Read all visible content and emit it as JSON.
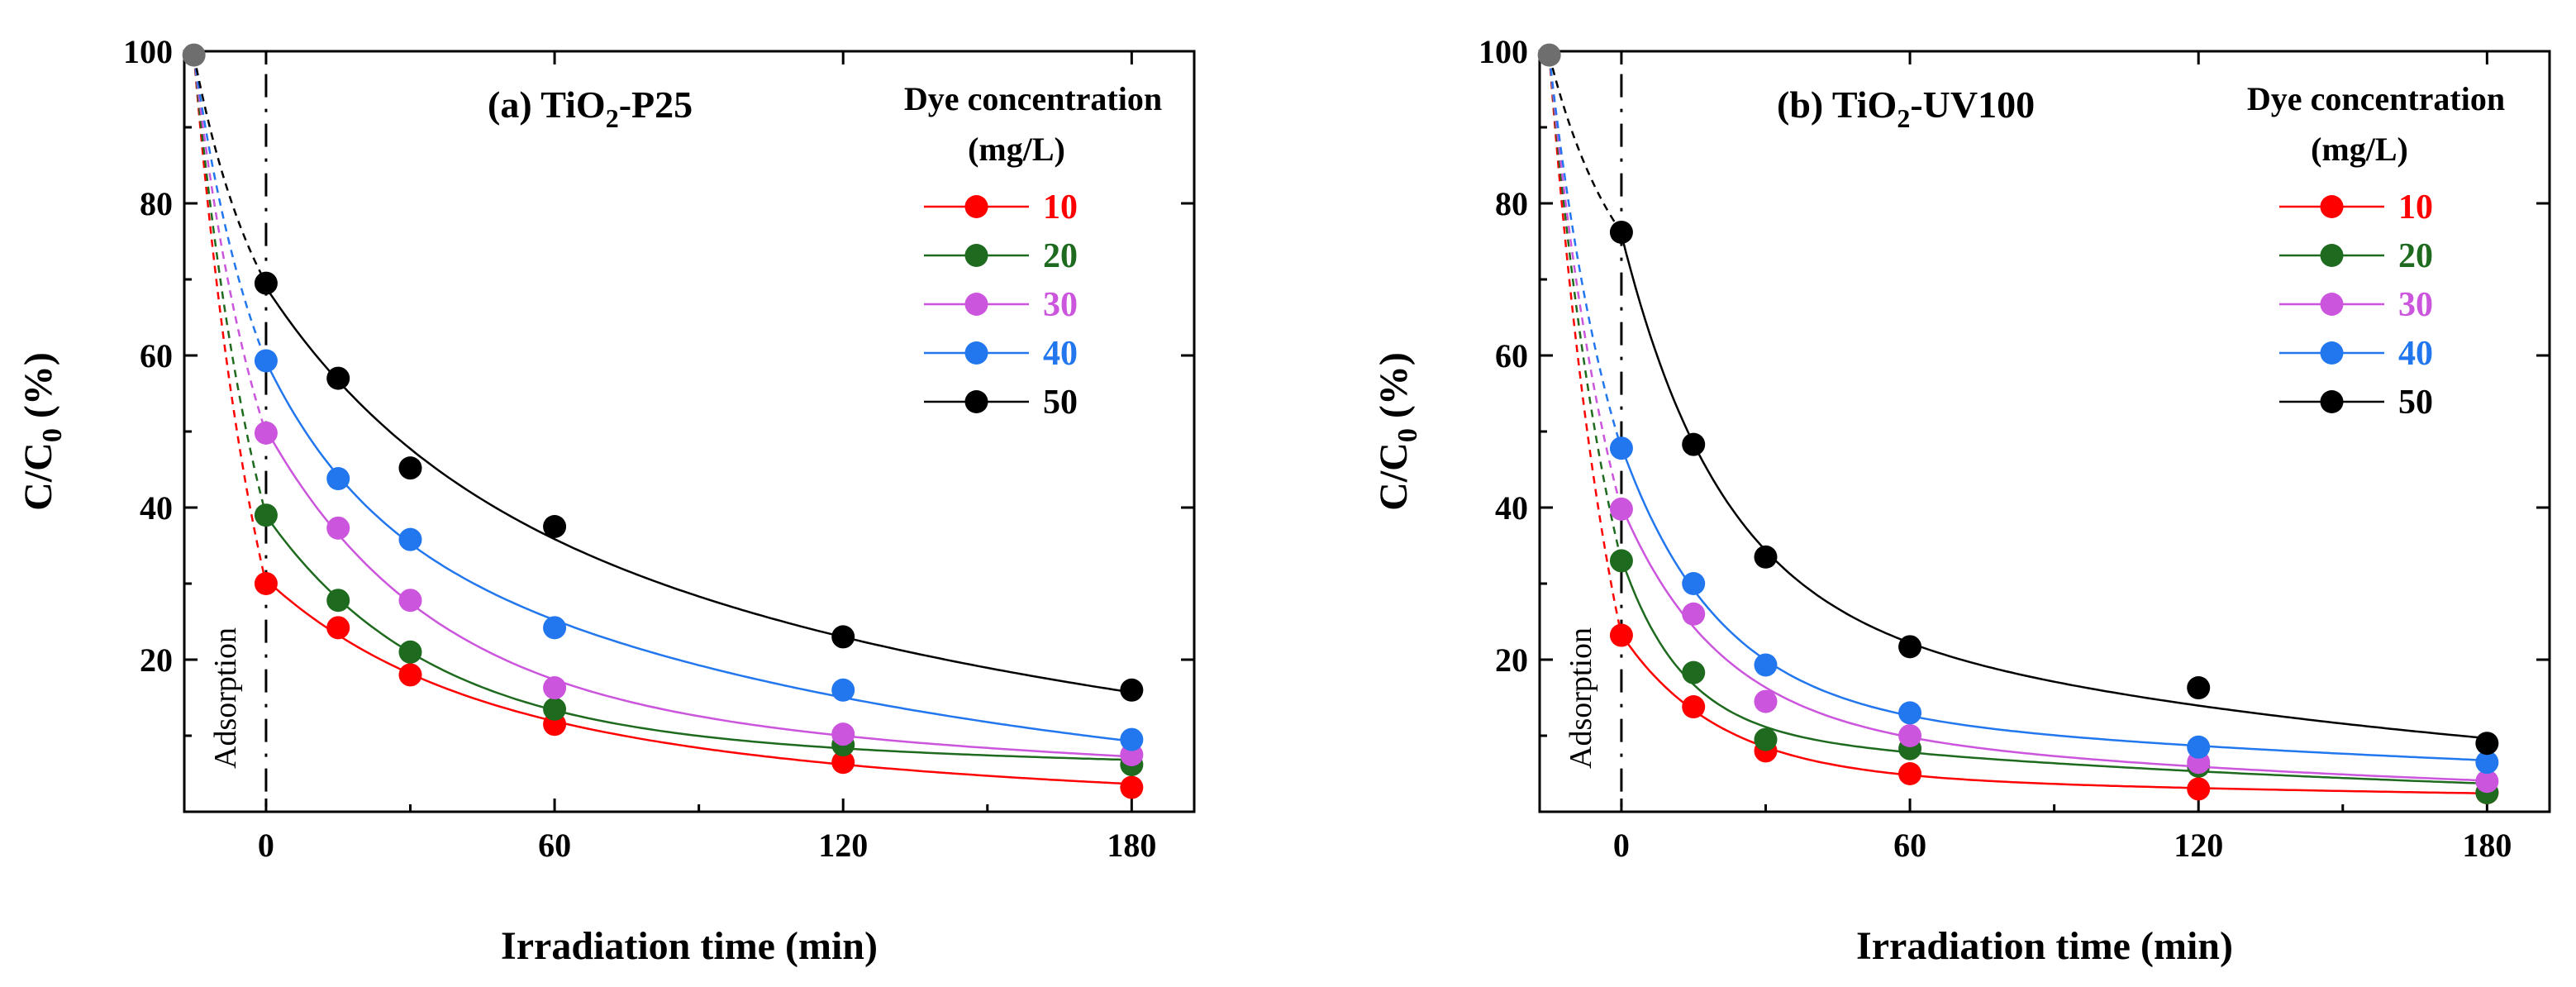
{
  "chart_data": [
    {
      "type": "scatter",
      "panel_id": "a",
      "title_prefix": "(a) TiO",
      "title_sub": "2",
      "title_suffix": "-P25",
      "xlabel": "Irradiation time (min)",
      "ylabel_main": "C/C",
      "ylabel_sub": "0",
      "ylabel_unit": " (%)",
      "xlim": [
        -17,
        193
      ],
      "ylim": [
        0,
        100
      ],
      "xticks": [
        0,
        60,
        120,
        180
      ],
      "xtick_labels": [
        "0",
        "60",
        "120",
        "180"
      ],
      "yticks": [
        20,
        40,
        60,
        80,
        100
      ],
      "ytick_labels": [
        "20",
        "40",
        "60",
        "80",
        "100"
      ],
      "annotation": "Adsorption",
      "adsorption_line_x": 0,
      "legend_title_line1": "Dye concentration",
      "legend_title_line2": "(mg/L)",
      "legend_position": "top-right",
      "start_point": {
        "x": -15,
        "y": 99.5,
        "color": "#6e6e6e"
      },
      "x": [
        0,
        15,
        30,
        60,
        120,
        180
      ],
      "series": [
        {
          "name": "10",
          "color": "#ff0000",
          "values": [
            30,
            24.2,
            18,
            11.5,
            6.5,
            3.2
          ]
        },
        {
          "name": "20",
          "color": "#1e6a1e",
          "values": [
            39,
            27.8,
            21,
            13.5,
            8.8,
            6.2
          ]
        },
        {
          "name": "30",
          "color": "#cc55dd",
          "values": [
            49.8,
            37.3,
            27.8,
            16.3,
            10.2,
            7.5
          ]
        },
        {
          "name": "40",
          "color": "#2277ee",
          "values": [
            59.3,
            43.8,
            35.8,
            24.2,
            16,
            9.5
          ]
        },
        {
          "name": "50",
          "color": "#000000",
          "values": [
            69.5,
            57,
            45.2,
            37.5,
            23,
            16
          ]
        }
      ]
    },
    {
      "type": "scatter",
      "panel_id": "b",
      "title_prefix": "(b) TiO",
      "title_sub": "2",
      "title_suffix": "-UV100",
      "xlabel": "Irradiation time (min)",
      "ylabel_main": "C/C",
      "ylabel_sub": "0",
      "ylabel_unit": " (%)",
      "xlim": [
        -17,
        193
      ],
      "ylim": [
        0,
        100
      ],
      "xticks": [
        0,
        60,
        120,
        180
      ],
      "xtick_labels": [
        "0",
        "60",
        "120",
        "180"
      ],
      "yticks": [
        20,
        40,
        60,
        80,
        100
      ],
      "ytick_labels": [
        "20",
        "40",
        "60",
        "80",
        "100"
      ],
      "annotation": "Adsorption",
      "adsorption_line_x": 0,
      "legend_title_line1": "Dye concentration",
      "legend_title_line2": "(mg/L)",
      "legend_position": "top-right",
      "start_point": {
        "x": -15,
        "y": 99.5,
        "color": "#6e6e6e"
      },
      "x": [
        0,
        15,
        30,
        60,
        120,
        180
      ],
      "series": [
        {
          "name": "10",
          "color": "#ff0000",
          "values": [
            23.2,
            13.8,
            8,
            5,
            3,
            2.5
          ]
        },
        {
          "name": "20",
          "color": "#1e6a1e",
          "values": [
            33,
            18.3,
            9.5,
            8.3,
            6,
            2.5
          ]
        },
        {
          "name": "30",
          "color": "#cc55dd",
          "values": [
            39.8,
            26,
            14.5,
            10,
            6.5,
            4
          ]
        },
        {
          "name": "40",
          "color": "#2277ee",
          "values": [
            47.8,
            30,
            19.3,
            13,
            8.5,
            6.5
          ]
        },
        {
          "name": "50",
          "color": "#000000",
          "values": [
            76.2,
            48.3,
            33.5,
            21.7,
            16.3,
            9
          ]
        }
      ]
    }
  ]
}
